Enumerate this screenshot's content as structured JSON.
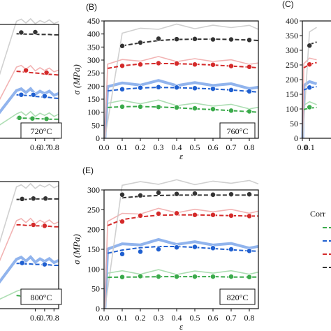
{
  "legend": {
    "title": "Corr",
    "colors": [
      "#3aaa4a",
      "#1f5fd0",
      "#d42a2a",
      "#333333"
    ]
  },
  "chart_data": [
    {
      "panel": "",
      "type": "line",
      "annotation": "720°C",
      "xlabel": "",
      "ylabel": "",
      "xlim": [
        0,
        0.85
      ],
      "xticks": [
        "0.6",
        "0.7",
        "0.8"
      ],
      "xtick_values": [
        0.6,
        0.7,
        0.8
      ],
      "yticks": [],
      "ylim": [
        80,
        420
      ],
      "series": [
        {
          "color": "#3aaa4a",
          "x": [
            0.4,
            0.45,
            0.5,
            0.55,
            0.6,
            0.65,
            0.7,
            0.75,
            0.8,
            0.85
          ],
          "y": [
            140,
            140,
            140,
            139,
            139,
            138,
            138,
            137,
            137,
            137
          ],
          "points_x": [
            0.43,
            0.57,
            0.72
          ],
          "points_y": [
            141,
            139,
            138
          ]
        },
        {
          "color": "#1f5fd0",
          "x": [
            0.4,
            0.45,
            0.5,
            0.55,
            0.6,
            0.65,
            0.7,
            0.75,
            0.8,
            0.85
          ],
          "y": [
            210,
            209,
            208,
            207,
            205,
            204,
            203,
            202,
            200,
            199
          ],
          "points_x": [
            0.45,
            0.58,
            0.7
          ],
          "points_y": [
            210,
            210,
            206
          ]
        },
        {
          "color": "#d42a2a",
          "x": [
            0.4,
            0.45,
            0.5,
            0.55,
            0.6,
            0.65,
            0.7,
            0.75,
            0.8,
            0.85
          ],
          "y": [
            280,
            279,
            278,
            276,
            275,
            274,
            272,
            271,
            270,
            269
          ],
          "points_x": [
            0.5,
            0.72
          ],
          "points_y": [
            283,
            276
          ]
        },
        {
          "color": "#333333",
          "x": [
            0.4,
            0.45,
            0.5,
            0.55,
            0.6,
            0.65,
            0.7,
            0.75,
            0.8,
            0.85
          ],
          "y": [
            392,
            392,
            391,
            391,
            391,
            390,
            390,
            390,
            389,
            389
          ],
          "points_x": [
            0.45,
            0.6
          ],
          "points_y": [
            396,
            397
          ]
        }
      ]
    },
    {
      "panel": "(B)",
      "type": "line",
      "annotation": "760°C",
      "xlabel": "ε",
      "ylabel": "σ (MPa)",
      "xlim": [
        0,
        0.85
      ],
      "ylim": [
        0,
        450
      ],
      "xticks": [
        "0.0",
        "0.1",
        "0.2",
        "0.3",
        "0.4",
        "0.5",
        "0.6",
        "0.7",
        "0.8"
      ],
      "xtick_values": [
        0,
        0.1,
        0.2,
        0.3,
        0.4,
        0.5,
        0.6,
        0.7,
        0.8
      ],
      "yticks": [
        "0",
        "50",
        "100",
        "150",
        "200",
        "250",
        "300",
        "350",
        "400",
        "450"
      ],
      "ytick_values": [
        0,
        50,
        100,
        150,
        200,
        250,
        300,
        350,
        400,
        450
      ],
      "series": [
        {
          "color": "#3aaa4a",
          "x": [
            0.02,
            0.1,
            0.2,
            0.3,
            0.4,
            0.5,
            0.6,
            0.7,
            0.8,
            0.85
          ],
          "y": [
            118,
            121,
            122,
            120,
            117,
            113,
            110,
            106,
            102,
            100
          ],
          "points_x": [
            0.1,
            0.2,
            0.3,
            0.4,
            0.5,
            0.6,
            0.7,
            0.8
          ],
          "points_y": [
            121,
            121,
            120,
            118,
            115,
            112,
            106,
            103
          ]
        },
        {
          "color": "#1f5fd0",
          "x": [
            0.02,
            0.1,
            0.2,
            0.3,
            0.4,
            0.5,
            0.6,
            0.7,
            0.8,
            0.85
          ],
          "y": [
            182,
            188,
            193,
            195,
            194,
            192,
            189,
            185,
            180,
            177
          ],
          "points_x": [
            0.1,
            0.2,
            0.3,
            0.4,
            0.5,
            0.6,
            0.7,
            0.8
          ],
          "points_y": [
            188,
            194,
            196,
            195,
            192,
            190,
            185,
            180
          ]
        },
        {
          "color": "#d42a2a",
          "x": [
            0.02,
            0.1,
            0.2,
            0.3,
            0.4,
            0.5,
            0.6,
            0.7,
            0.8,
            0.85
          ],
          "y": [
            268,
            278,
            285,
            287,
            286,
            284,
            281,
            277,
            273,
            270
          ],
          "points_x": [
            0.1,
            0.2,
            0.3,
            0.4,
            0.5,
            0.6,
            0.7,
            0.8
          ],
          "points_y": [
            278,
            283,
            288,
            287,
            283,
            282,
            277,
            274
          ]
        },
        {
          "color": "#333333",
          "x": [
            0.1,
            0.2,
            0.3,
            0.4,
            0.5,
            0.6,
            0.7,
            0.8,
            0.85
          ],
          "y": [
            355,
            366,
            375,
            379,
            380,
            380,
            379,
            377,
            375
          ],
          "points_x": [
            0.1,
            0.2,
            0.3,
            0.4,
            0.5,
            0.6,
            0.7,
            0.8
          ],
          "points_y": [
            354,
            367,
            382,
            380,
            381,
            379,
            379,
            377
          ]
        }
      ]
    },
    {
      "panel": "(C)",
      "type": "line",
      "annotation": "",
      "xlabel": "",
      "ylabel": "",
      "xlim": [
        0,
        0.85
      ],
      "ylim": [
        0,
        400
      ],
      "xticks": [
        "0.0",
        "0.1"
      ],
      "xtick_values": [
        0,
        0.1
      ],
      "yticks": [
        "0",
        "50",
        "100",
        "150",
        "200",
        "250",
        "300",
        "350",
        "400"
      ],
      "ytick_values": [
        0,
        50,
        100,
        150,
        200,
        250,
        300,
        350,
        400
      ],
      "series": [
        {
          "color": "#3aaa4a",
          "x": [
            0.02,
            0.1,
            0.2
          ],
          "y": [
            98,
            103,
            105
          ],
          "points_x": [
            0.1
          ],
          "points_y": [
            106
          ]
        },
        {
          "color": "#1f5fd0",
          "x": [
            0.02,
            0.1,
            0.2
          ],
          "y": [
            165,
            172,
            176
          ],
          "points_x": [
            0.1
          ],
          "points_y": [
            173
          ]
        },
        {
          "color": "#d42a2a",
          "x": [
            0.02,
            0.1,
            0.2
          ],
          "y": [
            240,
            252,
            258
          ],
          "points_x": [
            0.1
          ],
          "points_y": [
            252
          ]
        },
        {
          "color": "#333333",
          "x": [
            0.1,
            0.2
          ],
          "y": [
            320,
            328
          ],
          "points_x": [
            0.1
          ],
          "points_y": [
            316
          ]
        }
      ]
    },
    {
      "panel": "",
      "type": "line",
      "annotation": "800°C",
      "xlabel": "",
      "ylabel": "",
      "xlim": [
        0,
        0.85
      ],
      "ylim": [
        60,
        330
      ],
      "xticks": [
        "0.6",
        "0.7",
        "0.8"
      ],
      "xtick_values": [
        0.6,
        0.7,
        0.8
      ],
      "yticks": [],
      "series": [
        {
          "color": "#3aaa4a",
          "x": [
            0.4,
            0.45,
            0.5,
            0.55,
            0.6,
            0.65,
            0.7,
            0.75,
            0.8,
            0.85
          ],
          "y": [
            88,
            87,
            87,
            86,
            86,
            85,
            85,
            84,
            84,
            84
          ],
          "points_x": [
            0.47,
            0.7
          ],
          "points_y": [
            88,
            86
          ]
        },
        {
          "color": "#1f5fd0",
          "x": [
            0.4,
            0.45,
            0.5,
            0.55,
            0.6,
            0.65,
            0.7,
            0.75,
            0.8,
            0.85
          ],
          "y": [
            156,
            156,
            155,
            155,
            154,
            154,
            153,
            153,
            152,
            152
          ],
          "points_x": [
            0.46,
            0.7
          ],
          "points_y": [
            157,
            154
          ]
        },
        {
          "color": "#d42a2a",
          "x": [
            0.4,
            0.45,
            0.5,
            0.55,
            0.6,
            0.65,
            0.7,
            0.75,
            0.8,
            0.85
          ],
          "y": [
            238,
            238,
            237,
            237,
            236,
            236,
            235,
            235,
            234,
            234
          ],
          "points_x": [
            0.58,
            0.7
          ],
          "points_y": [
            238,
            236
          ]
        },
        {
          "color": "#333333",
          "x": [
            0.4,
            0.45,
            0.5,
            0.55,
            0.6,
            0.65,
            0.7,
            0.75,
            0.8,
            0.85
          ],
          "y": [
            292,
            292,
            292,
            293,
            293,
            293,
            293,
            293,
            293,
            293
          ],
          "points_x": [
            0.46,
            0.58,
            0.71
          ],
          "points_y": [
            293,
            294,
            294
          ]
        }
      ]
    },
    {
      "panel": "(E)",
      "type": "line",
      "annotation": "820°C",
      "xlabel": "ε",
      "ylabel": "σ (MPa)",
      "xlim": [
        0,
        0.85
      ],
      "ylim": [
        0,
        300
      ],
      "xticks": [
        "0.0",
        "0.1",
        "0.2",
        "0.3",
        "0.4",
        "0.5",
        "0.6",
        "0.7",
        "0.8"
      ],
      "xtick_values": [
        0,
        0.1,
        0.2,
        0.3,
        0.4,
        0.5,
        0.6,
        0.7,
        0.8
      ],
      "yticks": [
        "0",
        "50",
        "100",
        "150",
        "200",
        "250",
        "300"
      ],
      "ytick_values": [
        0,
        50,
        100,
        150,
        200,
        250,
        300
      ],
      "series": [
        {
          "color": "#3aaa4a",
          "x": [
            0.02,
            0.1,
            0.2,
            0.3,
            0.4,
            0.5,
            0.6,
            0.7,
            0.8,
            0.85
          ],
          "y": [
            79,
            80,
            80,
            81,
            81,
            81,
            81,
            80,
            80,
            80
          ],
          "points_x": [
            0.1,
            0.2,
            0.3,
            0.4,
            0.5,
            0.6,
            0.7,
            0.8
          ],
          "points_y": [
            80,
            82,
            81,
            81,
            81,
            81,
            81,
            80
          ]
        },
        {
          "color": "#1f5fd0",
          "x": [
            0.02,
            0.1,
            0.2,
            0.3,
            0.4,
            0.5,
            0.6,
            0.7,
            0.8,
            0.85
          ],
          "y": [
            140,
            148,
            154,
            157,
            157,
            155,
            152,
            149,
            146,
            145
          ],
          "points_x": [
            0.1,
            0.2,
            0.3,
            0.4,
            0.5,
            0.6,
            0.7,
            0.8
          ],
          "points_y": [
            138,
            144,
            150,
            155,
            156,
            153,
            150,
            146
          ]
        },
        {
          "color": "#d42a2a",
          "x": [
            0.02,
            0.1,
            0.2,
            0.3,
            0.4,
            0.5,
            0.6,
            0.7,
            0.8,
            0.85
          ],
          "y": [
            210,
            225,
            232,
            236,
            237,
            237,
            236,
            235,
            234,
            234
          ],
          "points_x": [
            0.1,
            0.2,
            0.3,
            0.4,
            0.5,
            0.6,
            0.7,
            0.8
          ],
          "points_y": [
            220,
            235,
            240,
            241,
            237,
            237,
            235,
            234
          ]
        },
        {
          "color": "#333333",
          "x": [
            0.1,
            0.2,
            0.3,
            0.4,
            0.5,
            0.6,
            0.7,
            0.8,
            0.85
          ],
          "y": [
            280,
            284,
            286,
            287,
            287,
            287,
            287,
            287,
            287
          ],
          "points_x": [
            0.1,
            0.2,
            0.3,
            0.4,
            0.5,
            0.6,
            0.7,
            0.8
          ],
          "points_y": [
            288,
            286,
            293,
            290,
            291,
            288,
            289,
            289
          ]
        }
      ]
    }
  ]
}
